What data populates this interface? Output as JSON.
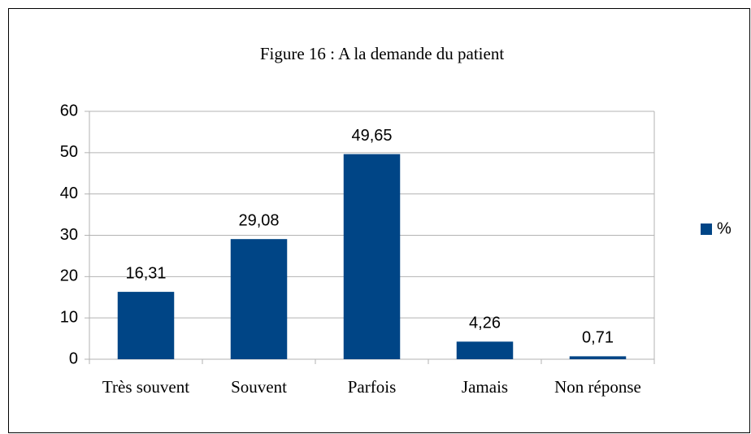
{
  "chart_data": {
    "type": "bar",
    "title": "Figure 16 : A la demande du patient",
    "categories": [
      "Très souvent",
      "Souvent",
      "Parfois",
      "Jamais",
      "Non réponse"
    ],
    "series": [
      {
        "name": "%",
        "color": "#004586",
        "values": [
          16.31,
          29.08,
          49.65,
          4.26,
          0.71
        ],
        "value_labels": [
          "16,31",
          "29,08",
          "49,65",
          "4,26",
          "0,71"
        ]
      }
    ],
    "ylim": [
      0,
      60
    ],
    "yticks": [
      0,
      10,
      20,
      30,
      40,
      50,
      60
    ],
    "grid": true,
    "legend": "right"
  }
}
